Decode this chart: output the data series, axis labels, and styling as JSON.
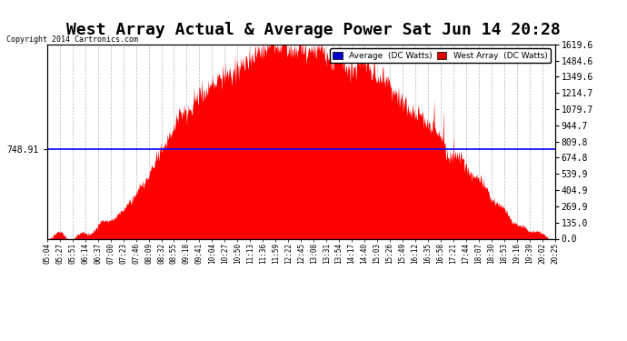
{
  "title": "West Array Actual & Average Power Sat Jun 14 20:28",
  "copyright": "Copyright 2014 Cartronics.com",
  "average_value": 748.91,
  "y_max": 1619.6,
  "y_min": 0.0,
  "right_yticks": [
    0.0,
    135.0,
    269.9,
    404.9,
    539.9,
    674.8,
    809.8,
    944.7,
    1079.7,
    1214.7,
    1349.6,
    1484.6,
    1619.6
  ],
  "background_color": "#ffffff",
  "plot_bg_color": "#ffffff",
  "grid_color": "#b0b0b0",
  "fill_color": "#ff0000",
  "avg_line_color": "#0000ff",
  "title_fontsize": 13,
  "legend_avg_color": "#0000cc",
  "legend_west_color": "#dd0000",
  "xtick_labels": [
    "05:04",
    "05:27",
    "05:51",
    "06:14",
    "06:37",
    "07:00",
    "07:23",
    "07:46",
    "08:09",
    "08:32",
    "08:55",
    "09:18",
    "09:41",
    "10:04",
    "10:27",
    "10:50",
    "11:13",
    "11:36",
    "11:59",
    "12:22",
    "12:45",
    "13:08",
    "13:31",
    "13:54",
    "14:17",
    "14:40",
    "15:03",
    "15:26",
    "15:49",
    "16:12",
    "16:35",
    "16:58",
    "17:21",
    "17:44",
    "18:07",
    "18:30",
    "18:53",
    "19:16",
    "19:39",
    "20:02",
    "20:25"
  ],
  "n_points": 41,
  "n_fine": 820
}
